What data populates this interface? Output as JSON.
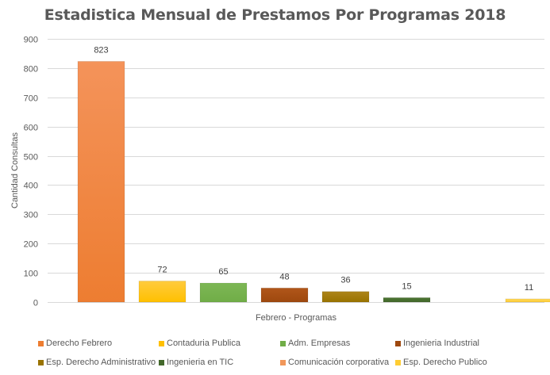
{
  "chart_data": {
    "type": "bar",
    "title": "Estadistica Mensual de Prestamos Por Programas 2018",
    "xlabel": "Febrero - Programas",
    "ylabel": "Cantidad Consultas",
    "ylim": [
      0,
      900
    ],
    "yticks": [
      0,
      100,
      200,
      300,
      400,
      500,
      600,
      700,
      800,
      900
    ],
    "grid": true,
    "legend_position": "bottom",
    "categories": [
      "Febrero"
    ],
    "series": [
      {
        "name": "Derecho Febrero",
        "values": [
          823
        ],
        "color": "#ED7D31",
        "color_light": "#F4935A",
        "label": "823"
      },
      {
        "name": "Contaduria Publica",
        "values": [
          72
        ],
        "color": "#FFC000",
        "color_light": "#FFCB3D",
        "label": "72"
      },
      {
        "name": "Adm. Empresas",
        "values": [
          65
        ],
        "color": "#70AD47",
        "color_light": "#7DB755",
        "label": "65"
      },
      {
        "name": "Ingenieria Industrial",
        "values": [
          48
        ],
        "color": "#9E480E",
        "color_light": "#B0561A",
        "label": "48"
      },
      {
        "name": "Esp. Derecho Administrativo",
        "values": [
          36
        ],
        "color": "#997300",
        "color_light": "#AD8419",
        "label": "36"
      },
      {
        "name": "Ingenieria en TIC",
        "values": [
          15
        ],
        "color": "#43682B",
        "color_light": "#4C7533",
        "label": "15"
      },
      {
        "name": "Comunicación corporativa",
        "values": [
          0
        ],
        "color": "#F1975A",
        "color_light": "#F4A775",
        "label": ""
      },
      {
        "name": "Esp. Derecho Publico",
        "values": [
          11
        ],
        "color": "#FFCD33",
        "color_light": "#FFD85C",
        "label": "11"
      }
    ]
  }
}
